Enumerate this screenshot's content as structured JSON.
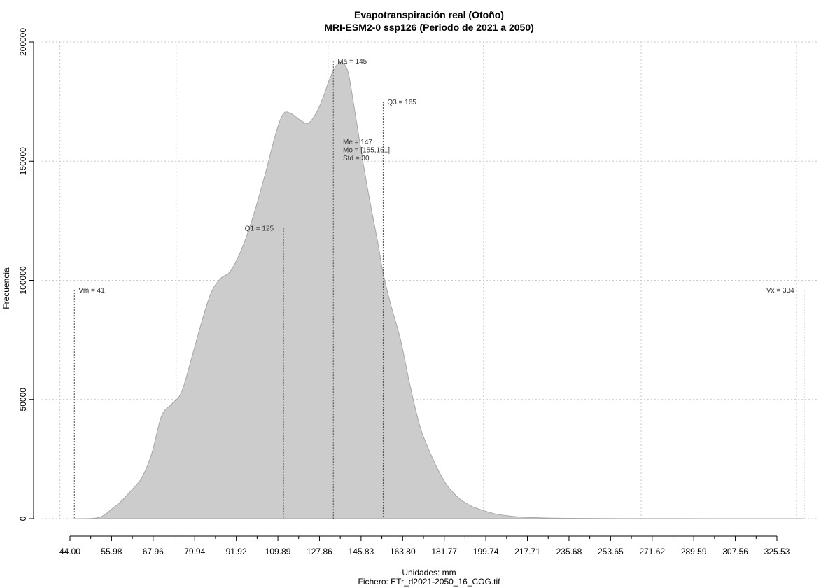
{
  "chart_data": {
    "type": "area",
    "title": "Evapotranspiración real (Otoño)",
    "subtitle": "MRI-ESM2-0 ssp126 (Periodo de 2021 a 2050)",
    "xlabel": "Unidades: mm",
    "caption": "Fichero: ETr_d2021-2050_16_COG.tif",
    "ylabel": "Frecuencia",
    "xlim": [
      28,
      340
    ],
    "ylim": [
      -6000,
      200000
    ],
    "grid": true,
    "x_ticks": [
      "44.00",
      "55.98",
      "67.96",
      "79.94",
      "91.92",
      "109.89",
      "127.86",
      "145.83",
      "163.80",
      "181.77",
      "199.74",
      "217.71",
      "235.68",
      "253.65",
      "271.62",
      "289.59",
      "307.56",
      "325.53"
    ],
    "y_ticks": [
      "0",
      "50000",
      "100000",
      "150000",
      "200000"
    ],
    "x_grid_values": [
      35.2,
      81.9,
      142.9,
      205.3,
      268.6,
      331.0
    ],
    "y_grid_values": [
      0,
      50000,
      100000,
      150000,
      200000
    ],
    "fill_color": "#cccccc",
    "line_color": "#a6a6a6",
    "density": {
      "x": [
        41,
        45,
        50,
        53,
        56,
        60,
        64,
        68,
        72,
        76,
        80,
        84,
        88,
        92,
        96,
        100,
        103,
        106,
        110,
        114,
        118,
        122,
        125,
        128,
        132,
        135,
        138,
        141,
        143,
        145,
        147,
        149,
        151,
        153,
        155,
        157,
        159,
        161,
        163,
        165,
        168,
        172,
        176,
        180,
        185,
        190,
        195,
        200,
        205,
        210,
        215,
        220,
        230,
        240,
        260,
        280,
        300,
        320,
        334
      ],
      "y": [
        0,
        0,
        300,
        1500,
        4000,
        7500,
        12000,
        17000,
        27000,
        43000,
        48000,
        53000,
        67000,
        82000,
        95000,
        101000,
        103000,
        108000,
        118000,
        131000,
        146000,
        162000,
        170000,
        170000,
        167000,
        166000,
        170000,
        177000,
        183000,
        188000,
        191000,
        191000,
        187000,
        175000,
        162000,
        149000,
        137000,
        126000,
        115000,
        103000,
        90000,
        75000,
        55000,
        38000,
        25000,
        15000,
        9000,
        5500,
        3500,
        2000,
        1200,
        700,
        300,
        150,
        50,
        20,
        10,
        5,
        0
      ]
    },
    "reference_lines": [
      {
        "label": "Vm = 41",
        "x": 41,
        "y_top": 96000,
        "label_side": "right"
      },
      {
        "label": "Q1 = 125",
        "x": 125,
        "y_top": 122000,
        "label_side": "left"
      },
      {
        "label": "Ma = 145",
        "x": 145,
        "y_top": 192000,
        "label_side": "right"
      },
      {
        "label": "Q3 = 165",
        "x": 165,
        "y_top": 175000,
        "label_side": "right"
      },
      {
        "label": "Vx = 334",
        "x": 334,
        "y_top": 96000,
        "label_side": "left"
      }
    ],
    "stats": [
      "Me = 147",
      "Mo = [155,161]",
      "Std = 30"
    ]
  }
}
